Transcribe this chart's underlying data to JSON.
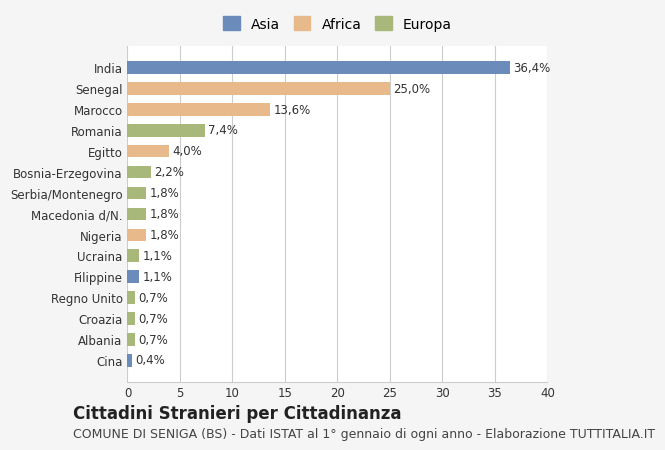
{
  "categories": [
    "India",
    "Senegal",
    "Marocco",
    "Romania",
    "Egitto",
    "Bosnia-Erzegovina",
    "Serbia/Montenegro",
    "Macedonia d/N.",
    "Nigeria",
    "Ucraina",
    "Filippine",
    "Regno Unito",
    "Croazia",
    "Albania",
    "Cina"
  ],
  "values": [
    36.4,
    25.0,
    13.6,
    7.4,
    4.0,
    2.2,
    1.8,
    1.8,
    1.8,
    1.1,
    1.1,
    0.7,
    0.7,
    0.7,
    0.4
  ],
  "labels": [
    "36,4%",
    "25,0%",
    "13,6%",
    "7,4%",
    "4,0%",
    "2,2%",
    "1,8%",
    "1,8%",
    "1,8%",
    "1,1%",
    "1,1%",
    "0,7%",
    "0,7%",
    "0,7%",
    "0,4%"
  ],
  "continents": [
    "Asia",
    "Africa",
    "Africa",
    "Europa",
    "Africa",
    "Europa",
    "Europa",
    "Europa",
    "Africa",
    "Europa",
    "Asia",
    "Europa",
    "Europa",
    "Europa",
    "Asia"
  ],
  "colors": {
    "Asia": "#6b8cba",
    "Africa": "#e8b98a",
    "Europa": "#a8b87a"
  },
  "legend_order": [
    "Asia",
    "Africa",
    "Europa"
  ],
  "xlim": [
    0,
    40
  ],
  "xticks": [
    0,
    5,
    10,
    15,
    20,
    25,
    30,
    35,
    40
  ],
  "title": "Cittadini Stranieri per Cittadinanza",
  "subtitle": "COMUNE DI SENIGA (BS) - Dati ISTAT al 1° gennaio di ogni anno - Elaborazione TUTTITALIA.IT",
  "background_color": "#f5f5f5",
  "plot_background": "#ffffff",
  "grid_color": "#cccccc",
  "title_fontsize": 12,
  "subtitle_fontsize": 9,
  "label_fontsize": 8.5,
  "tick_fontsize": 8.5
}
